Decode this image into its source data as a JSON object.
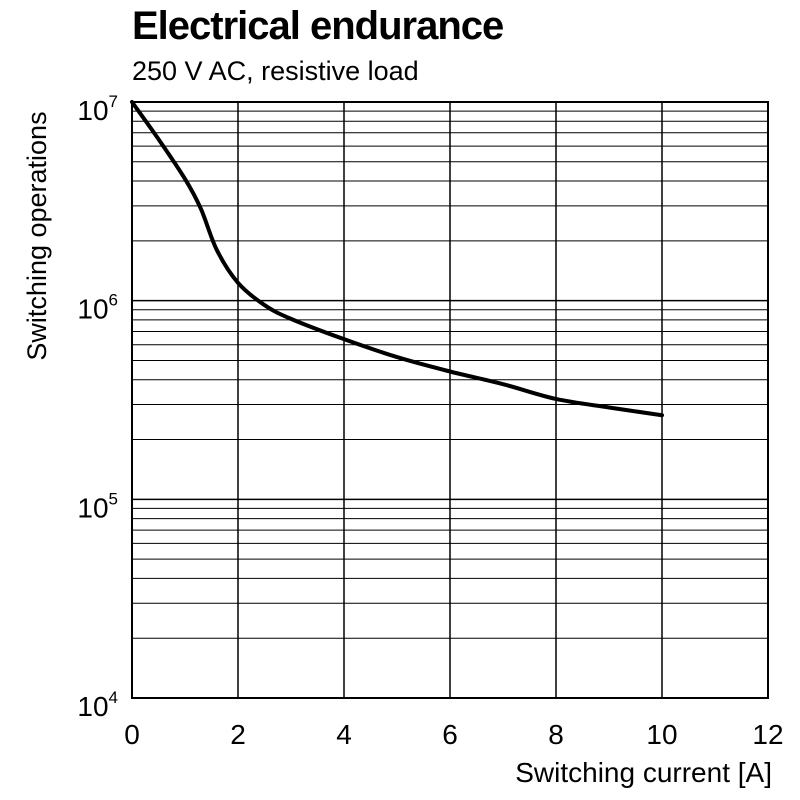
{
  "chart_data": {
    "type": "line",
    "title": "Electrical endurance",
    "subtitle": "250 V AC, resistive load",
    "xlabel": "Switching current [A]",
    "ylabel": "Switching operations",
    "xlim": [
      0,
      12
    ],
    "ylim": [
      10000,
      10000000
    ],
    "yscale": "log",
    "grid": true,
    "x_ticks": [
      0,
      2,
      4,
      6,
      8,
      10,
      12
    ],
    "y_ticks": [
      {
        "value": 10000,
        "base": "10",
        "exp": "4"
      },
      {
        "value": 100000,
        "base": "10",
        "exp": "5"
      },
      {
        "value": 1000000,
        "base": "10",
        "exp": "6"
      },
      {
        "value": 10000000,
        "base": "10",
        "exp": "7"
      }
    ],
    "series": [
      {
        "color": "#000000",
        "x": [
          0,
          0.5,
          1.0,
          1.3,
          1.6,
          2.0,
          2.5,
          3.0,
          4.0,
          5.0,
          6.0,
          7.0,
          8.0,
          9.0,
          10.0
        ],
        "y": [
          10000000,
          6500000,
          4100000,
          2900000,
          1800000,
          1230000,
          950000,
          810000,
          640000,
          520000,
          440000,
          380000,
          320000,
          290000,
          265000
        ]
      }
    ]
  }
}
